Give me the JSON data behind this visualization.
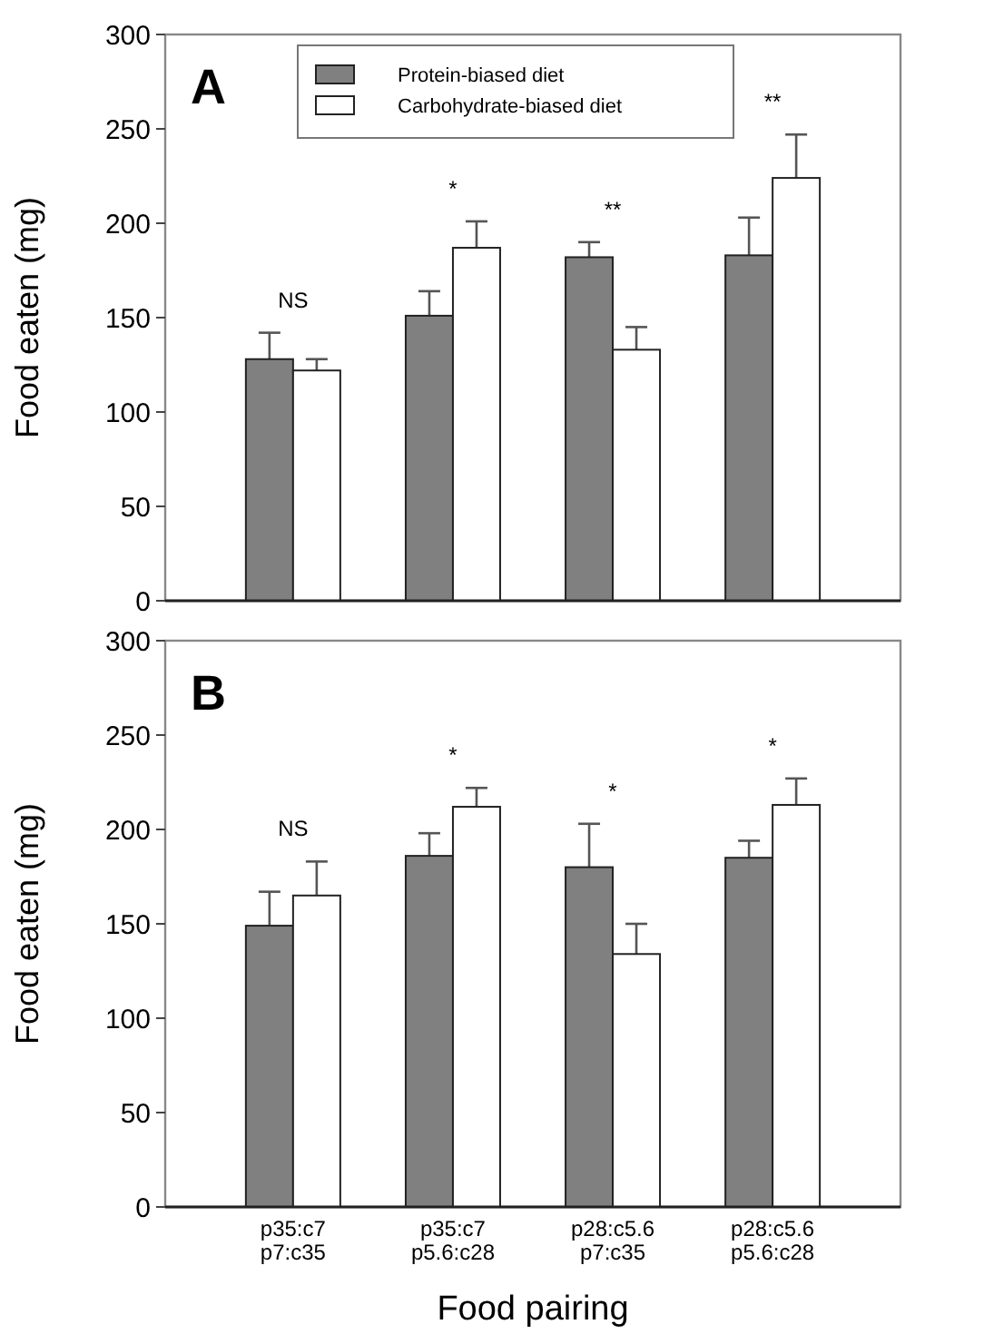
{
  "chart_data": [
    {
      "type": "bar",
      "title": "A",
      "ylabel": "Food eaten (mg)",
      "categories": [
        null,
        null,
        null,
        null
      ],
      "tick_labels": "y",
      "legend": "top",
      "ylim": [
        0,
        300
      ],
      "yticks": [
        0,
        50,
        100,
        150,
        200,
        250,
        300
      ],
      "annotations": [
        "NS",
        "*",
        "**",
        "**"
      ],
      "series": [
        {
          "name": "Protein-biased diet",
          "color": "#808080",
          "values": [
            128,
            151,
            182,
            183
          ],
          "errors": [
            [
              128,
              142
            ],
            [
              151,
              164
            ],
            [
              182,
              190
            ],
            [
              183,
              203
            ]
          ]
        },
        {
          "name": "Carbohydrate-biased diet",
          "color": "#ffffff",
          "values": [
            122,
            187,
            133,
            224
          ],
          "errors": [
            [
              122,
              128
            ],
            [
              187,
              201
            ],
            [
              133,
              145
            ],
            [
              224,
              247
            ]
          ]
        }
      ]
    },
    {
      "type": "bar",
      "title": "B",
      "ylabel": "Food eaten (mg)",
      "xlabel": "Food pairing",
      "categories": [
        "p35:c7\np7:c35",
        "p35:c7\np5.6:c28",
        "p28:c5.6\np7:c35",
        "p28:c5.6\np5.6:c28"
      ],
      "ylim": [
        0,
        300
      ],
      "yticks": [
        0,
        50,
        100,
        150,
        200,
        250,
        300
      ],
      "annotations": [
        "NS",
        "*",
        "*",
        "*"
      ],
      "series": [
        {
          "color": "#808080",
          "values": [
            149,
            186,
            180,
            185
          ],
          "errors": [
            [
              149,
              167
            ],
            [
              186,
              198
            ],
            [
              180,
              203
            ],
            [
              185,
              194
            ]
          ]
        },
        {
          "color": "#ffffff",
          "values": [
            165,
            212,
            134,
            213
          ],
          "errors": [
            [
              165,
              183
            ],
            [
              212,
              222
            ],
            [
              134,
              150
            ],
            [
              213,
              227
            ]
          ]
        }
      ]
    }
  ]
}
